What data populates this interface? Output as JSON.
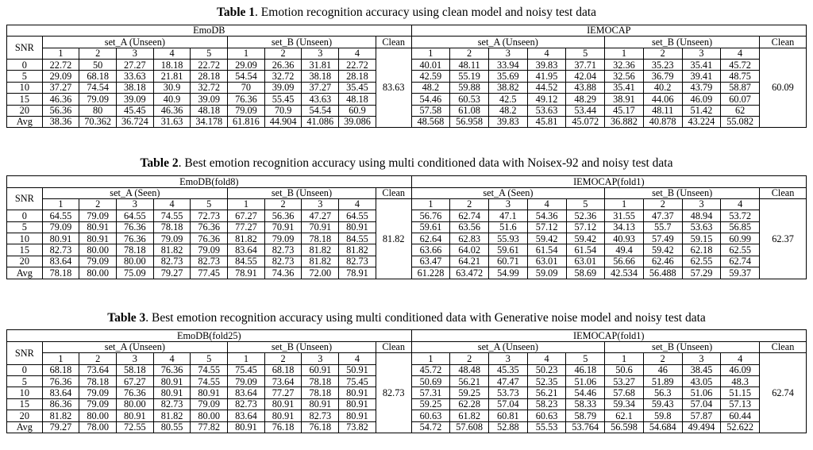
{
  "snr_label": "SNR",
  "snr_rows": [
    "0",
    "5",
    "10",
    "15",
    "20",
    "Avg"
  ],
  "captions": [
    {
      "label": "Table 1",
      "text": ". Emotion recognition accuracy using clean model and noisy test data"
    },
    {
      "label": "Table 2",
      "text": ". Best emotion recognition accuracy using multi conditioned data with Noisex-92 and noisy test data"
    },
    {
      "label": "Table 3",
      "text": ". Best emotion recognition accuracy using multi conditioned data with Generative noise model and noisy test data"
    }
  ],
  "tables": [
    {
      "halves": [
        {
          "dataset": "EmoDB",
          "setA": {
            "label": "set_A (Unseen)",
            "cols": [
              "1",
              "2",
              "3",
              "4",
              "5"
            ]
          },
          "setB": {
            "label": "set_B (Unseen)",
            "cols": [
              "1",
              "2",
              "3",
              "4"
            ]
          },
          "clean_label": "Clean",
          "clean_value": "83.63",
          "rows": [
            [
              "22.72",
              "50",
              "27.27",
              "18.18",
              "22.72",
              "29.09",
              "26.36",
              "31.81",
              "22.72"
            ],
            [
              "29.09",
              "68.18",
              "33.63",
              "21.81",
              "28.18",
              "54.54",
              "32.72",
              "38.18",
              "28.18"
            ],
            [
              "37.27",
              "74.54",
              "38.18",
              "30.9",
              "32.72",
              "70",
              "39.09",
              "37.27",
              "35.45"
            ],
            [
              "46.36",
              "79.09",
              "39.09",
              "40.9",
              "39.09",
              "76.36",
              "55.45",
              "43.63",
              "48.18"
            ],
            [
              "56.36",
              "80",
              "45.45",
              "46.36",
              "48.18",
              "79.09",
              "70.9",
              "54.54",
              "60.9"
            ],
            [
              "38.36",
              "70.362",
              "36.724",
              "31.63",
              "34.178",
              "61.816",
              "44.904",
              "41.086",
              "39.086"
            ]
          ]
        },
        {
          "dataset": "IEMOCAP",
          "setA": {
            "label": "set_A (Unseen)",
            "cols": [
              "1",
              "2",
              "3",
              "4",
              "5"
            ]
          },
          "setB": {
            "label": "set_B (Unseen)",
            "cols": [
              "1",
              "2",
              "3",
              "4"
            ]
          },
          "clean_label": "Clean",
          "clean_value": "60.09",
          "rows": [
            [
              "40.01",
              "48.11",
              "33.94",
              "39.83",
              "37.71",
              "32.36",
              "35.23",
              "35.41",
              "45.72"
            ],
            [
              "42.59",
              "55.19",
              "35.69",
              "41.95",
              "42.04",
              "32.56",
              "36.79",
              "39.41",
              "48.75"
            ],
            [
              "48.2",
              "59.88",
              "38.82",
              "44.52",
              "43.88",
              "35.41",
              "40.2",
              "43.79",
              "58.87"
            ],
            [
              "54.46",
              "60.53",
              "42.5",
              "49.12",
              "48.29",
              "38.91",
              "44.06",
              "46.09",
              "60.07"
            ],
            [
              "57.58",
              "61.08",
              "48.2",
              "53.63",
              "53.44",
              "45.17",
              "48.11",
              "51.42",
              "62"
            ],
            [
              "48.568",
              "56.958",
              "39.83",
              "45.81",
              "45.072",
              "36.882",
              "40.878",
              "43.224",
              "55.082"
            ]
          ]
        }
      ]
    },
    {
      "halves": [
        {
          "dataset": "EmoDB(fold8)",
          "setA": {
            "label": "set_A (Seen)",
            "cols": [
              "1",
              "2",
              "3",
              "4",
              "5"
            ]
          },
          "setB": {
            "label": "set_B (Unseen)",
            "cols": [
              "1",
              "2",
              "3",
              "4"
            ]
          },
          "clean_label": "Clean",
          "clean_value": "81.82",
          "rows": [
            [
              "64.55",
              "79.09",
              "64.55",
              "74.55",
              "72.73",
              "67.27",
              "56.36",
              "47.27",
              "64.55"
            ],
            [
              "79.09",
              "80.91",
              "76.36",
              "78.18",
              "76.36",
              "77.27",
              "70.91",
              "70.91",
              "80.91"
            ],
            [
              "80.91",
              "80.91",
              "76.36",
              "79.09",
              "76.36",
              "81.82",
              "79.09",
              "78.18",
              "84.55"
            ],
            [
              "82.73",
              "80.00",
              "78.18",
              "81.82",
              "79.09",
              "83.64",
              "82.73",
              "81.82",
              "81.82"
            ],
            [
              "83.64",
              "79.09",
              "80.00",
              "82.73",
              "82.73",
              "84.55",
              "82.73",
              "81.82",
              "82.73"
            ],
            [
              "78.18",
              "80.00",
              "75.09",
              "79.27",
              "77.45",
              "78.91",
              "74.36",
              "72.00",
              "78.91"
            ]
          ]
        },
        {
          "dataset": "IEMOCAP(fold1)",
          "setA": {
            "label": "set_A (Seen)",
            "cols": [
              "1",
              "2",
              "3",
              "4",
              "5"
            ]
          },
          "setB": {
            "label": "set_B (Unseen)",
            "cols": [
              "1",
              "2",
              "3",
              "4"
            ]
          },
          "clean_label": "Clean",
          "clean_value": "62.37",
          "rows": [
            [
              "56.76",
              "62.74",
              "47.1",
              "54.36",
              "52.36",
              "31.55",
              "47.37",
              "48.94",
              "53.72"
            ],
            [
              "59.61",
              "63.56",
              "51.6",
              "57.12",
              "57.12",
              "34.13",
              "55.7",
              "53.63",
              "56.85"
            ],
            [
              "62.64",
              "62.83",
              "55.93",
              "59.42",
              "59.42",
              "40.93",
              "57.49",
              "59.15",
              "60.99"
            ],
            [
              "63.66",
              "64.02",
              "59.61",
              "61.54",
              "61.54",
              "49.4",
              "59.42",
              "62.18",
              "62.55"
            ],
            [
              "63.47",
              "64.21",
              "60.71",
              "63.01",
              "63.01",
              "56.66",
              "62.46",
              "62.55",
              "62.74"
            ],
            [
              "61.228",
              "63.472",
              "54.99",
              "59.09",
              "58.69",
              "42.534",
              "56.488",
              "57.29",
              "59.37"
            ]
          ]
        }
      ]
    },
    {
      "halves": [
        {
          "dataset": "EmoDB(fold25)",
          "setA": {
            "label": "set_A (Unseen)",
            "cols": [
              "1",
              "2",
              "3",
              "4",
              "5"
            ]
          },
          "setB": {
            "label": "set_B (Unseen)",
            "cols": [
              "1",
              "2",
              "3",
              "4"
            ]
          },
          "clean_label": "Clean",
          "clean_value": "82.73",
          "rows": [
            [
              "68.18",
              "73.64",
              "58.18",
              "76.36",
              "74.55",
              "75.45",
              "68.18",
              "60.91",
              "50.91"
            ],
            [
              "76.36",
              "78.18",
              "67.27",
              "80.91",
              "74.55",
              "79.09",
              "73.64",
              "78.18",
              "75.45"
            ],
            [
              "83.64",
              "79.09",
              "76.36",
              "80.91",
              "80.91",
              "83.64",
              "77.27",
              "78.18",
              "80.91"
            ],
            [
              "86.36",
              "79.09",
              "80.00",
              "82.73",
              "79.09",
              "82.73",
              "80.91",
              "80.91",
              "80.91"
            ],
            [
              "81.82",
              "80.00",
              "80.91",
              "81.82",
              "80.00",
              "83.64",
              "80.91",
              "82.73",
              "80.91"
            ],
            [
              "79.27",
              "78.00",
              "72.55",
              "80.55",
              "77.82",
              "80.91",
              "76.18",
              "76.18",
              "73.82"
            ]
          ]
        },
        {
          "dataset": "IEMOCAP(fold1)",
          "setA": {
            "label": "set_A (Unseen)",
            "cols": [
              "1",
              "2",
              "3",
              "4",
              "5"
            ]
          },
          "setB": {
            "label": "set_B (Unseen)",
            "cols": [
              "1",
              "2",
              "3",
              "4"
            ]
          },
          "clean_label": "Clean",
          "clean_value": "62.74",
          "rows": [
            [
              "45.72",
              "48.48",
              "45.35",
              "50.23",
              "46.18",
              "50.6",
              "46",
              "38.45",
              "46.09"
            ],
            [
              "50.69",
              "56.21",
              "47.47",
              "52.35",
              "51.06",
              "53.27",
              "51.89",
              "43.05",
              "48.3"
            ],
            [
              "57.31",
              "59.25",
              "53.73",
              "56.21",
              "54.46",
              "57.68",
              "56.3",
              "51.06",
              "51.15"
            ],
            [
              "59.25",
              "62.28",
              "57.04",
              "58.23",
              "58.33",
              "59.34",
              "59.43",
              "57.04",
              "57.13"
            ],
            [
              "60.63",
              "61.82",
              "60.81",
              "60.63",
              "58.79",
              "62.1",
              "59.8",
              "57.87",
              "60.44"
            ],
            [
              "54.72",
              "57.608",
              "52.88",
              "55.53",
              "53.764",
              "56.598",
              "54.684",
              "49.494",
              "52.622"
            ]
          ]
        }
      ]
    }
  ]
}
